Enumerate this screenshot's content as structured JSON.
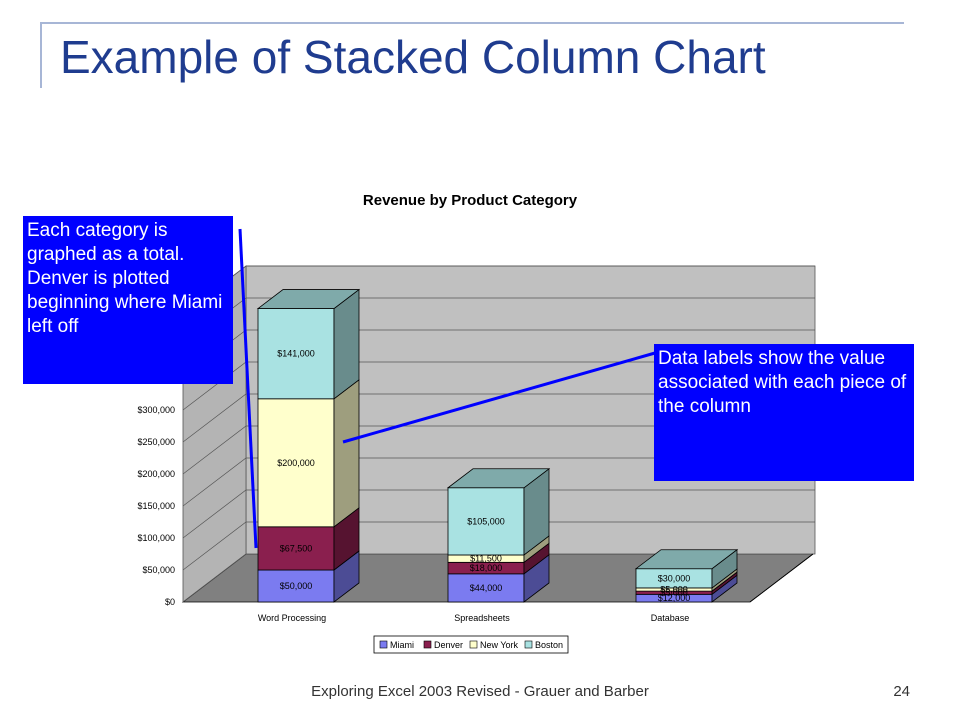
{
  "slide": {
    "title": "Example of Stacked Column Chart",
    "footer": "Exploring Excel 2003 Revised - Grauer and Barber",
    "page_number": "24"
  },
  "callouts": {
    "left": "Each category is graphed as a total. Denver is plotted beginning where Miami left off",
    "right": "Data labels show the value associated with each piece of the column"
  },
  "colors": {
    "callout_bg": "#0000ff",
    "title": "#1f3c8f",
    "Miami": "#7b7bf0",
    "Denver": "#8a1f4e",
    "New York": "#ffffcc",
    "Boston": "#a9e2e2"
  },
  "chart_data": {
    "type": "bar",
    "stacked": true,
    "three_d": true,
    "title": "Revenue by Product Category",
    "categories": [
      "Word Processing",
      "Spreadsheets",
      "Database"
    ],
    "series": [
      {
        "name": "Miami",
        "values": [
          50000,
          44000,
          12000
        ],
        "labels": [
          "$50,000",
          "$44,000",
          "$12,000"
        ]
      },
      {
        "name": "Denver",
        "values": [
          67500,
          18000,
          5000
        ],
        "labels": [
          "$67,500",
          "$18,000",
          "$5,000"
        ]
      },
      {
        "name": "New York",
        "values": [
          200000,
          11500,
          5000
        ],
        "labels": [
          "$200,000",
          "$11,500",
          "$5,000"
        ]
      },
      {
        "name": "Boston",
        "values": [
          141000,
          105000,
          30000
        ],
        "labels": [
          "$141,000",
          "$105,000",
          "$30,000"
        ]
      }
    ],
    "y_ticks": [
      "$0",
      "$50,000",
      "$100,000",
      "$150,000",
      "$200,000",
      "$250,000",
      "$300,000"
    ],
    "ylim": [
      0,
      450000
    ],
    "grid": true,
    "legend": "bottom"
  }
}
